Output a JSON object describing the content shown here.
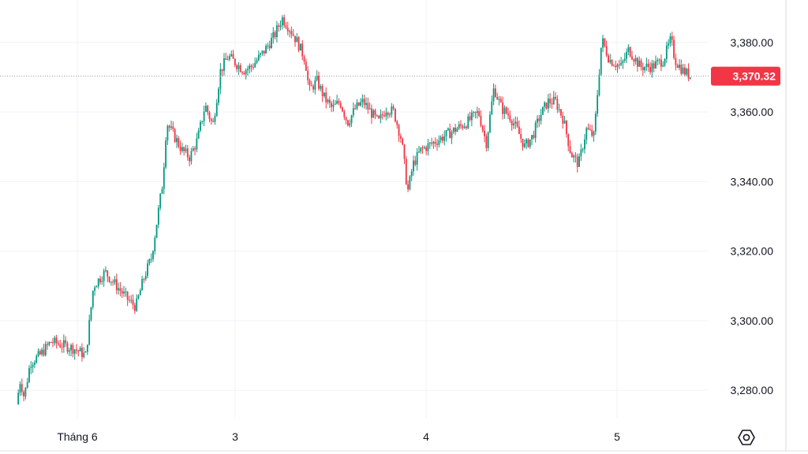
{
  "chart_data": {
    "type": "candlestick",
    "x_tick_labels": [
      "Tháng 6",
      "3",
      "4",
      "5"
    ],
    "y_tick_labels": [
      "3,380.00",
      "3,360.00",
      "3,340.00",
      "3,320.00",
      "3,300.00",
      "3,280.00"
    ],
    "y_ticks": [
      3380,
      3360,
      3340,
      3320,
      3300,
      3280
    ],
    "ylim": [
      3262.6,
      3392.2
    ],
    "current_price": 3370.32,
    "current_price_label": "3,370.32",
    "grid": true,
    "colors": {
      "up": "#089981",
      "down": "#f23645",
      "badge": "#f23645",
      "grid": "#f0f3fa",
      "text": "#131722"
    },
    "close_path": [
      [
        0,
        3276
      ],
      [
        0.005,
        3283
      ],
      [
        0.01,
        3278
      ],
      [
        0.018,
        3288
      ],
      [
        0.03,
        3290
      ],
      [
        0.045,
        3294
      ],
      [
        0.06,
        3293
      ],
      [
        0.075,
        3292
      ],
      [
        0.09,
        3290
      ],
      [
        0.1,
        3310
      ],
      [
        0.115,
        3314
      ],
      [
        0.13,
        3310
      ],
      [
        0.145,
        3306
      ],
      [
        0.155,
        3304
      ],
      [
        0.165,
        3312
      ],
      [
        0.175,
        3318
      ],
      [
        0.18,
        3325
      ],
      [
        0.19,
        3340
      ],
      [
        0.195,
        3357
      ],
      [
        0.205,
        3353
      ],
      [
        0.215,
        3349
      ],
      [
        0.225,
        3347
      ],
      [
        0.235,
        3352
      ],
      [
        0.245,
        3362
      ],
      [
        0.255,
        3356
      ],
      [
        0.265,
        3372
      ],
      [
        0.275,
        3376
      ],
      [
        0.285,
        3374
      ],
      [
        0.295,
        3372
      ],
      [
        0.305,
        3373
      ],
      [
        0.32,
        3377
      ],
      [
        0.335,
        3382
      ],
      [
        0.345,
        3387
      ],
      [
        0.355,
        3384
      ],
      [
        0.365,
        3380
      ],
      [
        0.375,
        3375
      ],
      [
        0.38,
        3366
      ],
      [
        0.39,
        3369
      ],
      [
        0.4,
        3364
      ],
      [
        0.41,
        3361
      ],
      [
        0.42,
        3363
      ],
      [
        0.43,
        3357
      ],
      [
        0.44,
        3361
      ],
      [
        0.45,
        3363
      ],
      [
        0.46,
        3360
      ],
      [
        0.47,
        3357
      ],
      [
        0.48,
        3361
      ],
      [
        0.49,
        3360
      ],
      [
        0.5,
        3352
      ],
      [
        0.508,
        3337
      ],
      [
        0.515,
        3345
      ],
      [
        0.525,
        3349
      ],
      [
        0.54,
        3351
      ],
      [
        0.555,
        3353
      ],
      [
        0.57,
        3355
      ],
      [
        0.585,
        3357
      ],
      [
        0.6,
        3360
      ],
      [
        0.61,
        3351
      ],
      [
        0.62,
        3367
      ],
      [
        0.63,
        3361
      ],
      [
        0.64,
        3359
      ],
      [
        0.65,
        3355
      ],
      [
        0.66,
        3350
      ],
      [
        0.67,
        3353
      ],
      [
        0.68,
        3359
      ],
      [
        0.69,
        3363
      ],
      [
        0.7,
        3363
      ],
      [
        0.71,
        3358
      ],
      [
        0.72,
        3348
      ],
      [
        0.73,
        3345
      ],
      [
        0.74,
        3355
      ],
      [
        0.75,
        3353
      ],
      [
        0.76,
        3381
      ],
      [
        0.77,
        3375
      ],
      [
        0.785,
        3373
      ],
      [
        0.795,
        3378
      ],
      [
        0.81,
        3373
      ],
      [
        0.825,
        3373
      ],
      [
        0.84,
        3375
      ],
      [
        0.85,
        3381
      ],
      [
        0.855,
        3375
      ],
      [
        0.865,
        3372
      ],
      [
        0.875,
        3370.32
      ]
    ]
  }
}
